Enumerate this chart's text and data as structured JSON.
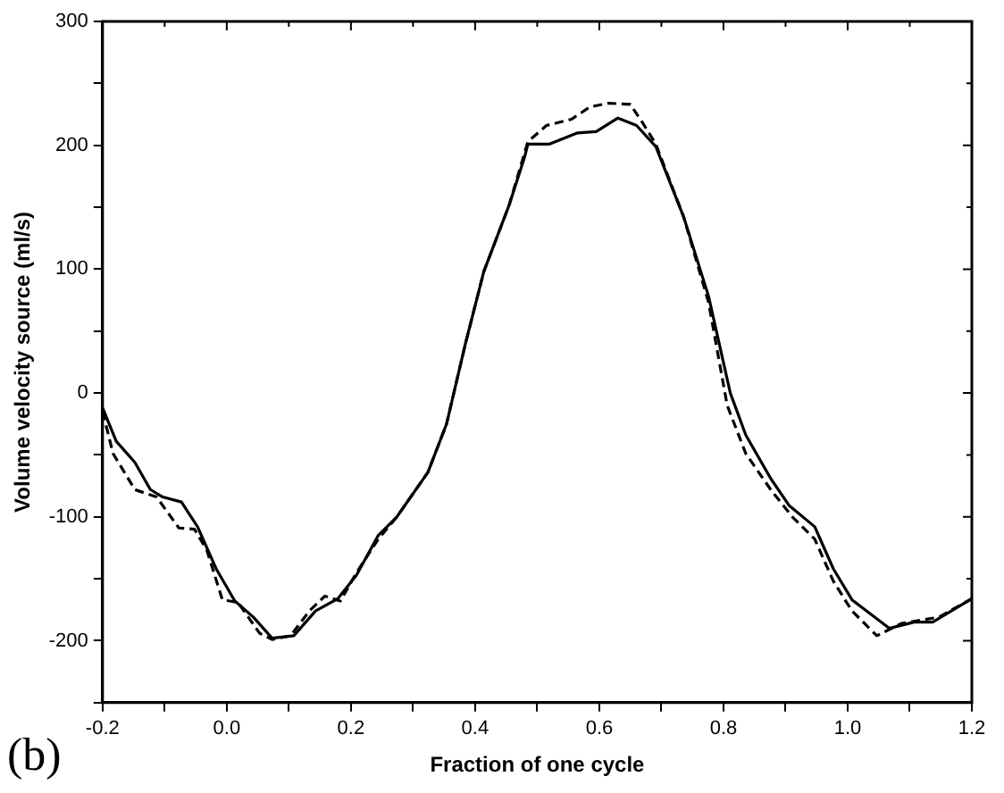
{
  "chart_data": {
    "type": "line",
    "xlabel": "Fraction of one cycle",
    "ylabel": "Volume velocity source (ml/s)",
    "annotations": [
      "(b)"
    ],
    "xlim": [
      -0.2,
      1.2
    ],
    "ylim": [
      -250,
      300
    ],
    "xticks": [
      -0.2,
      {
        "value": -0.1,
        "label": null
      },
      "0.0",
      {
        "value": 0.1,
        "label": null
      },
      0.2,
      {
        "value": 0.3,
        "label": null
      },
      0.4,
      {
        "value": 0.5,
        "label": null
      },
      0.6,
      {
        "value": 0.7,
        "label": null
      },
      0.8,
      {
        "value": 0.9,
        "label": null
      },
      {
        "value": 1.0,
        "label": "1.0"
      },
      {
        "value": 1.1,
        "label": null
      },
      1.2
    ],
    "yticks": [
      {
        "value": -250,
        "label": null
      },
      -200,
      {
        "value": -150,
        "label": null
      },
      -100,
      {
        "value": -50,
        "label": null
      },
      0,
      {
        "value": 50,
        "label": null
      },
      100,
      {
        "value": 150,
        "label": null
      },
      200,
      {
        "value": 250,
        "label": null
      },
      300
    ],
    "grid": false,
    "legend": false,
    "marker": "none",
    "series": [
      {
        "color": "#000000",
        "line_style": "solid",
        "x": [
          -0.2,
          -0.178,
          -0.148,
          -0.123,
          -0.103,
          -0.073,
          -0.047,
          -0.017,
          0.013,
          0.043,
          0.073,
          0.108,
          0.143,
          0.179,
          0.209,
          0.244,
          0.274,
          0.324,
          0.354,
          0.384,
          0.414,
          0.455,
          0.48,
          0.485,
          0.52,
          0.565,
          0.595,
          0.63,
          0.66,
          0.691,
          0.736,
          0.776,
          0.811,
          0.836,
          0.876,
          0.906,
          0.947,
          0.977,
          1.007,
          1.067,
          1.107,
          1.137,
          1.167,
          1.2
        ],
        "values": [
          -12,
          -39,
          -56,
          -78,
          -84,
          -88,
          -108,
          -142,
          -168,
          -181,
          -198,
          -196,
          -176,
          -166,
          -147,
          -115,
          -100,
          -64,
          -25,
          39,
          98,
          152,
          191,
          201,
          201,
          210,
          211,
          222,
          216,
          199,
          142,
          78,
          0,
          -34,
          -69,
          -91,
          -108,
          -142,
          -167,
          -190,
          -185,
          -185,
          -176,
          -166
        ]
      },
      {
        "color": "#000000",
        "line_style": "dashed",
        "x": [
          -0.2,
          -0.183,
          -0.148,
          -0.113,
          -0.077,
          -0.052,
          -0.032,
          -0.007,
          0.018,
          0.053,
          0.073,
          0.103,
          0.133,
          0.158,
          0.183,
          0.209,
          0.244,
          0.274,
          0.324,
          0.354,
          0.384,
          0.414,
          0.455,
          0.485,
          0.515,
          0.555,
          0.585,
          0.615,
          0.65,
          0.67,
          0.691,
          0.736,
          0.776,
          0.806,
          0.836,
          0.876,
          0.911,
          0.947,
          0.977,
          1.007,
          1.047,
          1.087,
          1.147,
          1.2
        ],
        "values": [
          -15,
          -49,
          -78,
          -84,
          -109,
          -110,
          -127,
          -167,
          -169,
          -194,
          -199,
          -196,
          -176,
          -164,
          -168,
          -145,
          -118,
          -100,
          -64,
          -25,
          39,
          98,
          152,
          203,
          216,
          221,
          231,
          234,
          233,
          218,
          201,
          142,
          73,
          -10,
          -49,
          -78,
          -100,
          -118,
          -152,
          -176,
          -196,
          -186,
          -181,
          -166
        ]
      }
    ]
  }
}
